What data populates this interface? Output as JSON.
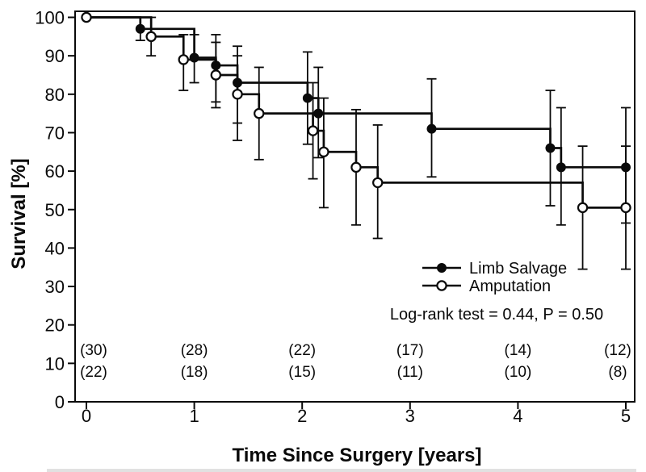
{
  "figure": {
    "background_color": "#ffffff",
    "ink_color": "#0a0a0a"
  },
  "chart_data": {
    "type": "line",
    "subtype": "kaplan-meier-step-curves-with-error-bars",
    "title": "",
    "xlabel": "Time Since Surgery [years]",
    "ylabel": "Survival [%]",
    "xlim": [
      0,
      5
    ],
    "ylim": [
      0,
      100
    ],
    "xticks": [
      0,
      1,
      2,
      3,
      4,
      5
    ],
    "yticks": [
      0,
      10,
      20,
      30,
      40,
      50,
      60,
      70,
      80,
      90,
      100
    ],
    "grid": false,
    "legend_position": "inside-right-middle",
    "annotation": "Log-rank test = 0.44, P = 0.50",
    "at_risk_times": [
      0,
      1,
      2,
      3,
      4,
      5
    ],
    "series": [
      {
        "name": "Limb Salvage",
        "marker": "filled-circle",
        "color": "#0a0a0a",
        "start": {
          "t": 0,
          "s": 100
        },
        "points": [
          {
            "t": 0.5,
            "s": 97,
            "lo": 94,
            "hi": 100
          },
          {
            "t": 1.0,
            "s": 89.5,
            "lo": 83,
            "hi": 95.5
          },
          {
            "t": 1.2,
            "s": 87.5,
            "lo": 78,
            "hi": 95.5
          },
          {
            "t": 1.4,
            "s": 83,
            "lo": 72.5,
            "hi": 92.5
          },
          {
            "t": 2.05,
            "s": 79,
            "lo": 67,
            "hi": 91
          },
          {
            "t": 2.15,
            "s": 75,
            "lo": 63.5,
            "hi": 87
          },
          {
            "t": 3.2,
            "s": 71,
            "lo": 58.5,
            "hi": 84
          },
          {
            "t": 4.3,
            "s": 66,
            "lo": 51,
            "hi": 81
          },
          {
            "t": 4.4,
            "s": 61,
            "lo": 46,
            "hi": 76.5
          },
          {
            "t": 5.0,
            "s": 61,
            "lo": 46.5,
            "hi": 76.5
          }
        ],
        "at_risk_labels": [
          "(30)",
          "(28)",
          "(22)",
          "(17)",
          "(14)",
          "(12)"
        ]
      },
      {
        "name": "Amputation",
        "marker": "open-circle",
        "color": "#0a0a0a",
        "start": {
          "t": 0,
          "s": 100
        },
        "points": [
          {
            "t": 0.6,
            "s": 95,
            "lo": 90,
            "hi": 100
          },
          {
            "t": 0.9,
            "s": 89,
            "lo": 81,
            "hi": 95.5
          },
          {
            "t": 1.2,
            "s": 85,
            "lo": 76.5,
            "hi": 93.5
          },
          {
            "t": 1.4,
            "s": 80,
            "lo": 68,
            "hi": 90
          },
          {
            "t": 1.6,
            "s": 75,
            "lo": 63,
            "hi": 87
          },
          {
            "t": 2.1,
            "s": 70.5,
            "lo": 58,
            "hi": 83
          },
          {
            "t": 2.2,
            "s": 65,
            "lo": 50.5,
            "hi": 79
          },
          {
            "t": 2.5,
            "s": 61,
            "lo": 46,
            "hi": 76
          },
          {
            "t": 2.7,
            "s": 57,
            "lo": 42.5,
            "hi": 72
          },
          {
            "t": 4.6,
            "s": 50.5,
            "lo": 34.5,
            "hi": 66.5
          },
          {
            "t": 5.0,
            "s": 50.5,
            "lo": 34.5,
            "hi": 66.5
          }
        ],
        "at_risk_labels": [
          "(22)",
          "(18)",
          "(15)",
          "(11)",
          "(10)",
          "(8)"
        ]
      }
    ]
  }
}
